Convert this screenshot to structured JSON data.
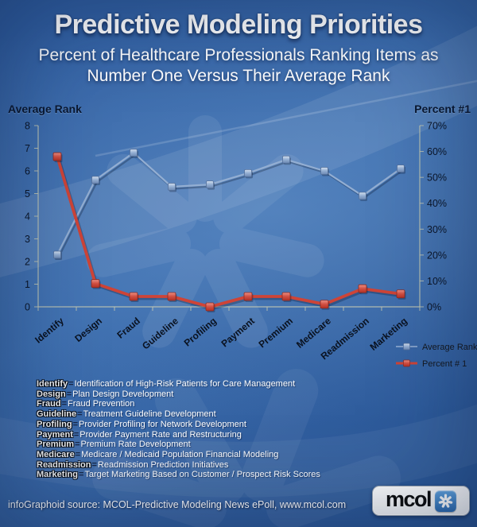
{
  "header": {
    "title": "Predictive Modeling Priorities",
    "subtitle_line1": "Percent of Healthcare Professionals Ranking Items as",
    "subtitle_line2": "Number One Versus Their Average Rank"
  },
  "chart_data": {
    "type": "line",
    "categories": [
      "Identify",
      "Design",
      "Fraud",
      "Guideline",
      "Profiling",
      "Payment",
      "Premium",
      "Medicare",
      "Readmission",
      "Marketing"
    ],
    "series": [
      {
        "name": "Average Rank",
        "axis": "left",
        "color": "#93aed2",
        "marker": "square",
        "values": [
          2.3,
          5.6,
          6.8,
          5.3,
          5.4,
          5.9,
          6.5,
          6.0,
          4.9,
          6.1
        ]
      },
      {
        "name": "Percent # 1",
        "axis": "right",
        "color": "#ce4437",
        "marker": "square",
        "values": [
          58,
          9,
          4,
          4,
          0,
          4,
          4,
          1,
          7,
          5
        ]
      }
    ],
    "left_axis": {
      "title": "Average Rank",
      "min": 0,
      "max": 8,
      "tick_step": 1,
      "tick_labels": [
        "0",
        "1",
        "2",
        "3",
        "4",
        "5",
        "6",
        "7",
        "8"
      ]
    },
    "right_axis": {
      "title": "Percent #1",
      "min": 0,
      "max": 70,
      "tick_step": 10,
      "tick_labels": [
        "0%",
        "10%",
        "20%",
        "30%",
        "40%",
        "50%",
        "60%",
        "70%"
      ]
    },
    "legend": [
      "Average Rank",
      "Percent # 1"
    ],
    "legend_position": "bottom-right",
    "grid": false
  },
  "definitions_separator": "=",
  "definitions": [
    {
      "term": "Identify",
      "description": "Identification of High-Risk Patients for Care Management"
    },
    {
      "term": "Design",
      "description": "Plan Design Development"
    },
    {
      "term": "Fraud",
      "description": "Fraud Prevention"
    },
    {
      "term": "Guideline",
      "description": "Treatment Guideline Development"
    },
    {
      "term": "Profiling",
      "description": "Provider Profiling for Network Development"
    },
    {
      "term": "Payment",
      "description": "Provider Payment Rate and Restructuring"
    },
    {
      "term": "Premium",
      "description": "Premium Rate Development"
    },
    {
      "term": "Medicare",
      "description": "Medicare / Medicaid Population Financial Modeling"
    },
    {
      "term": "Readmission",
      "description": "Readmission Prediction Initiatives"
    },
    {
      "term": "Marketing",
      "description": "Target Marketing Based on Customer / Prospect Risk Scores"
    }
  ],
  "footer": {
    "source": "infoGraphoid source: MCOL-Predictive Modeling News ePoll, www.mcol.com",
    "logo_text": "mcol",
    "logo_icon": "asterisk-icon"
  }
}
